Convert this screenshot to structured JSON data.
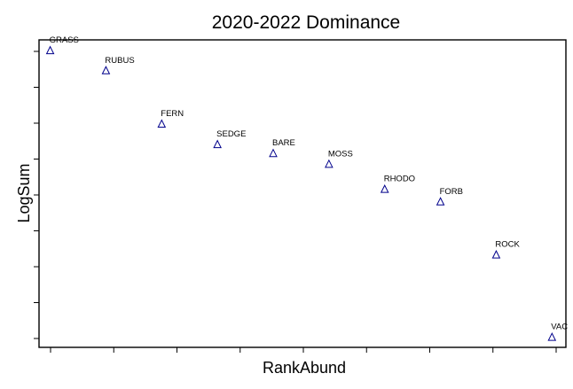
{
  "chart_data": {
    "type": "scatter",
    "title": "2020-2022 Dominance",
    "xlabel": "RankAbund",
    "ylabel": "LogSum",
    "marker": "triangle-open",
    "marker_color": "#00008b",
    "xlim": [
      0.8,
      10.25
    ],
    "ylim": [
      -0.28,
      8.3
    ],
    "x_tick_count": 9,
    "y_tick_count": 9,
    "points": [
      {
        "label": "GRASS",
        "x": 1,
        "y": 8.0
      },
      {
        "label": "RUBUS",
        "x": 2,
        "y": 7.44
      },
      {
        "label": "FERN",
        "x": 3,
        "y": 5.95
      },
      {
        "label": "SEDGE",
        "x": 4,
        "y": 5.38
      },
      {
        "label": "BARE",
        "x": 5,
        "y": 5.13
      },
      {
        "label": "MOSS",
        "x": 6,
        "y": 4.83
      },
      {
        "label": "RHODO",
        "x": 7,
        "y": 4.13
      },
      {
        "label": "FORB",
        "x": 8,
        "y": 3.78
      },
      {
        "label": "ROCK",
        "x": 9,
        "y": 2.3
      },
      {
        "label": "VAC",
        "x": 10,
        "y": 0.0
      }
    ]
  }
}
